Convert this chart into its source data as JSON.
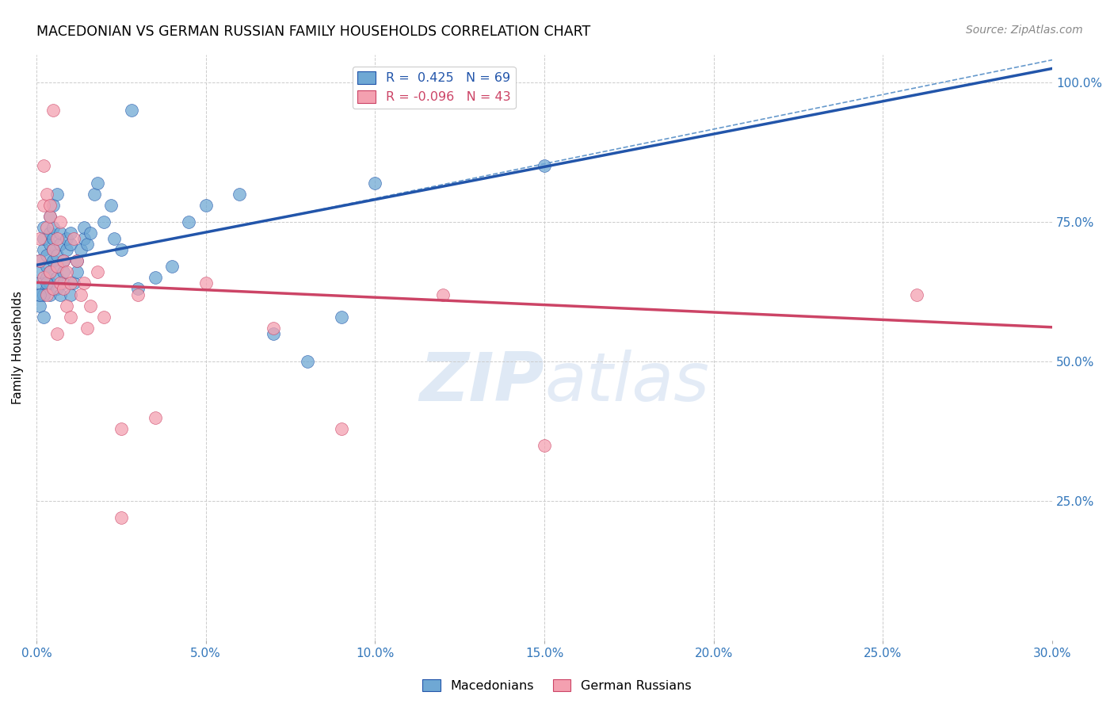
{
  "title": "MACEDONIAN VS GERMAN RUSSIAN FAMILY HOUSEHOLDS CORRELATION CHART",
  "source": "Source: ZipAtlas.com",
  "ylabel": "Family Households",
  "legend_blue_r": "R =  0.425",
  "legend_blue_n": "N = 69",
  "legend_pink_r": "R = -0.096",
  "legend_pink_n": "N = 43",
  "legend_blue_label": "Macedonians",
  "legend_pink_label": "German Russians",
  "blue_color": "#6fa8d4",
  "pink_color": "#f4a0b0",
  "blue_line_color": "#2255aa",
  "pink_line_color": "#cc4466",
  "dash_line_color": "#6699cc",
  "watermark_zip": "ZIP",
  "watermark_atlas": "atlas",
  "mac_x": [
    0.001,
    0.001,
    0.001,
    0.001,
    0.002,
    0.002,
    0.002,
    0.003,
    0.003,
    0.003,
    0.003,
    0.004,
    0.004,
    0.004,
    0.004,
    0.004,
    0.005,
    0.005,
    0.005,
    0.005,
    0.006,
    0.006,
    0.006,
    0.006,
    0.007,
    0.007,
    0.007,
    0.008,
    0.008,
    0.008,
    0.009,
    0.009,
    0.01,
    0.01,
    0.01,
    0.011,
    0.012,
    0.012,
    0.013,
    0.014,
    0.014,
    0.015,
    0.016,
    0.017,
    0.018,
    0.02,
    0.022,
    0.023,
    0.025,
    0.028,
    0.03,
    0.035,
    0.04,
    0.045,
    0.05,
    0.06,
    0.07,
    0.08,
    0.09,
    0.1,
    0.001,
    0.002,
    0.003,
    0.004,
    0.005,
    0.006,
    0.001,
    0.002,
    0.15
  ],
  "mac_y": [
    0.62,
    0.64,
    0.66,
    0.68,
    0.7,
    0.72,
    0.74,
    0.63,
    0.65,
    0.67,
    0.69,
    0.71,
    0.73,
    0.62,
    0.64,
    0.66,
    0.68,
    0.7,
    0.72,
    0.74,
    0.63,
    0.65,
    0.67,
    0.69,
    0.71,
    0.73,
    0.62,
    0.64,
    0.66,
    0.68,
    0.7,
    0.72,
    0.71,
    0.73,
    0.62,
    0.64,
    0.66,
    0.68,
    0.7,
    0.72,
    0.74,
    0.71,
    0.73,
    0.8,
    0.82,
    0.75,
    0.78,
    0.72,
    0.7,
    0.95,
    0.63,
    0.65,
    0.67,
    0.75,
    0.78,
    0.8,
    0.55,
    0.5,
    0.58,
    0.82,
    0.6,
    0.62,
    0.64,
    0.76,
    0.78,
    0.8,
    0.62,
    0.58,
    0.85
  ],
  "ger_x": [
    0.001,
    0.001,
    0.002,
    0.002,
    0.003,
    0.003,
    0.004,
    0.004,
    0.005,
    0.005,
    0.006,
    0.006,
    0.007,
    0.007,
    0.008,
    0.008,
    0.009,
    0.009,
    0.01,
    0.01,
    0.011,
    0.012,
    0.013,
    0.014,
    0.015,
    0.016,
    0.018,
    0.02,
    0.025,
    0.03,
    0.035,
    0.05,
    0.07,
    0.09,
    0.12,
    0.15,
    0.002,
    0.003,
    0.004,
    0.005,
    0.006,
    0.025,
    0.26
  ],
  "ger_y": [
    0.68,
    0.72,
    0.65,
    0.78,
    0.62,
    0.74,
    0.66,
    0.76,
    0.63,
    0.7,
    0.67,
    0.72,
    0.64,
    0.75,
    0.68,
    0.63,
    0.66,
    0.6,
    0.64,
    0.58,
    0.72,
    0.68,
    0.62,
    0.64,
    0.56,
    0.6,
    0.66,
    0.58,
    0.38,
    0.62,
    0.4,
    0.64,
    0.56,
    0.38,
    0.62,
    0.35,
    0.85,
    0.8,
    0.78,
    0.95,
    0.55,
    0.22,
    0.62
  ],
  "xlim": [
    0.0,
    0.3
  ],
  "ylim": [
    0.0,
    1.05
  ],
  "mac_R": 0.425,
  "ger_R": -0.096
}
